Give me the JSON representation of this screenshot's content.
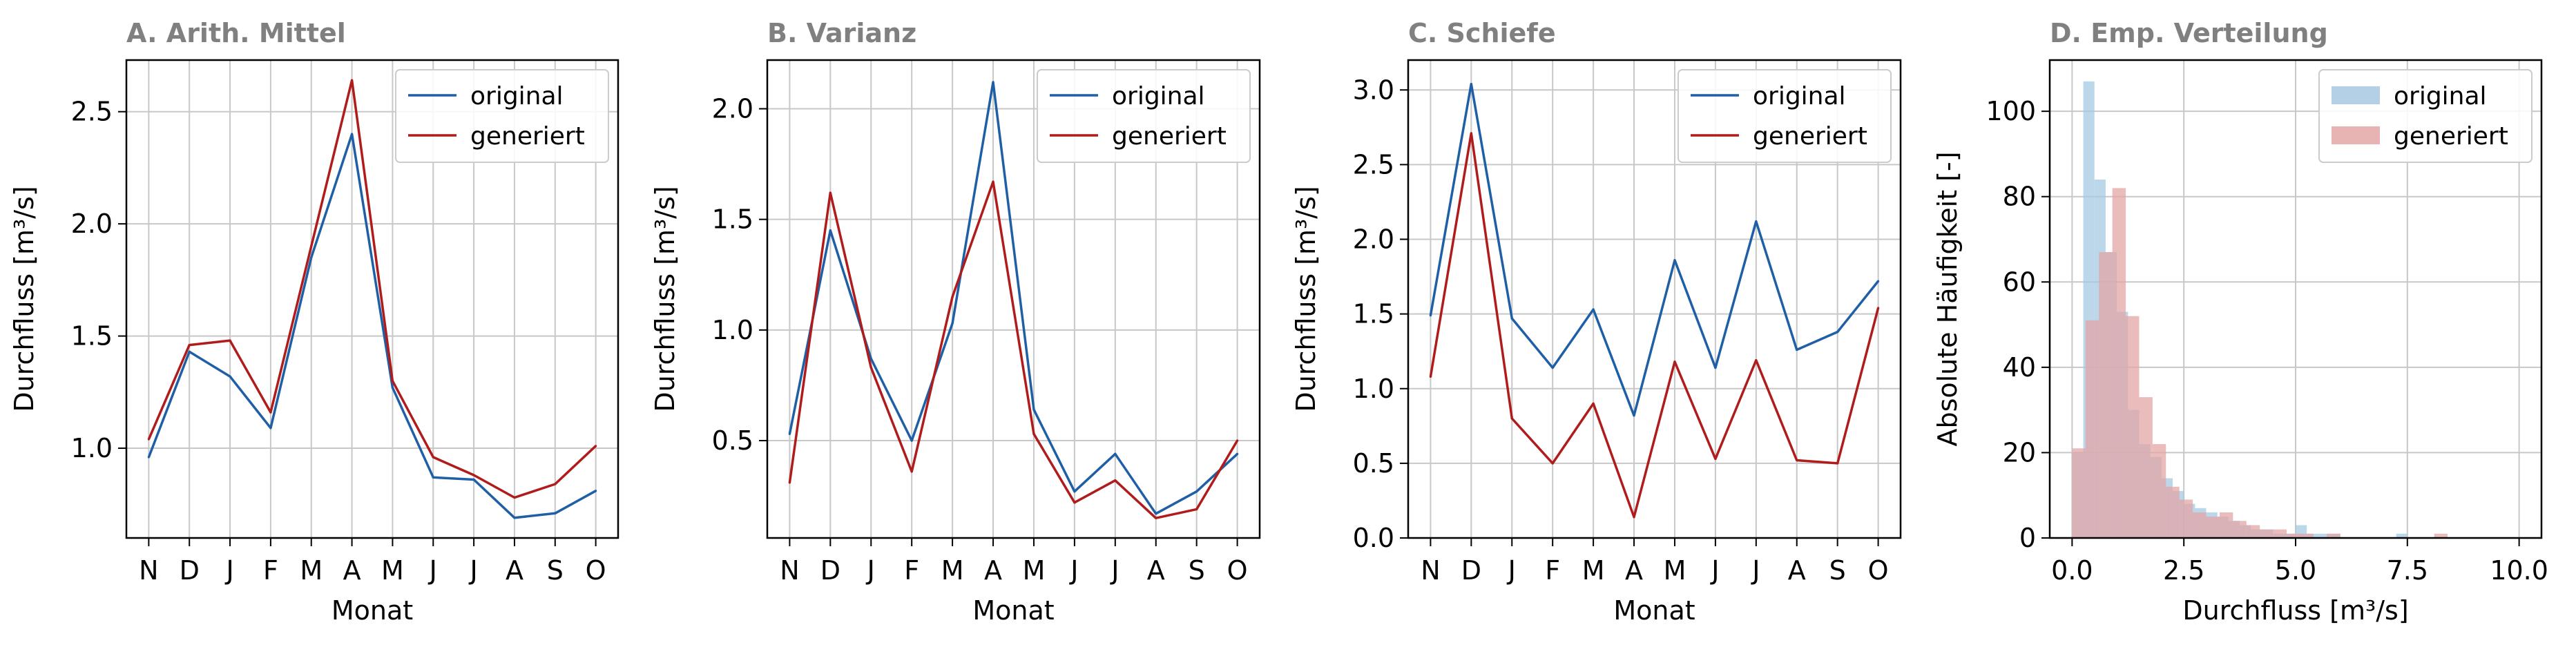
{
  "colors": {
    "original": "#1f5fa6",
    "generiert": "#b01c1c",
    "original_fill": "#a6c8e3",
    "generiert_fill": "#e3a6a6",
    "grid": "#c8c8c8",
    "title": "#808080"
  },
  "chart_data": [
    {
      "type": "line",
      "title": "A. Arith. Mittel",
      "xlabel": "Monat",
      "ylabel": "Durchfluss [m³/s]",
      "categories": [
        "N",
        "D",
        "J",
        "F",
        "M",
        "A",
        "M",
        "J",
        "J",
        "A",
        "S",
        "O"
      ],
      "ylim": [
        0.6,
        2.73
      ],
      "yticks": [
        1.0,
        1.5,
        2.0,
        2.5
      ],
      "ytick_labels": [
        "1.0",
        "1.5",
        "2.0",
        "2.5"
      ],
      "grid": true,
      "legend": "top-right",
      "series": [
        {
          "name": "original",
          "values": [
            0.96,
            1.43,
            1.32,
            1.09,
            1.85,
            2.4,
            1.27,
            0.87,
            0.86,
            0.69,
            0.71,
            0.81
          ]
        },
        {
          "name": "generiert",
          "values": [
            1.04,
            1.46,
            1.48,
            1.16,
            1.9,
            2.64,
            1.3,
            0.96,
            0.88,
            0.78,
            0.84,
            1.01
          ]
        }
      ]
    },
    {
      "type": "line",
      "title": "B. Varianz",
      "xlabel": "Monat",
      "ylabel": "Durchfluss [m³/s]",
      "categories": [
        "N",
        "D",
        "J",
        "F",
        "M",
        "A",
        "M",
        "J",
        "J",
        "A",
        "S",
        "O"
      ],
      "ylim": [
        0.06,
        2.22
      ],
      "yticks": [
        0.5,
        1.0,
        1.5,
        2.0
      ],
      "ytick_labels": [
        "0.5",
        "1.0",
        "1.5",
        "2.0"
      ],
      "grid": true,
      "legend": "top-right",
      "series": [
        {
          "name": "original",
          "values": [
            0.53,
            1.45,
            0.87,
            0.5,
            1.03,
            2.12,
            0.64,
            0.27,
            0.44,
            0.17,
            0.27,
            0.44
          ]
        },
        {
          "name": "generiert",
          "values": [
            0.31,
            1.62,
            0.83,
            0.36,
            1.15,
            1.67,
            0.53,
            0.22,
            0.32,
            0.15,
            0.19,
            0.5
          ]
        }
      ]
    },
    {
      "type": "line",
      "title": "C. Schiefe",
      "xlabel": "Monat",
      "ylabel": "Durchfluss [m³/s]",
      "categories": [
        "N",
        "D",
        "J",
        "F",
        "M",
        "A",
        "M",
        "J",
        "J",
        "A",
        "S",
        "O"
      ],
      "ylim": [
        0.0,
        3.2
      ],
      "yticks": [
        0.0,
        0.5,
        1.0,
        1.5,
        2.0,
        2.5,
        3.0
      ],
      "ytick_labels": [
        "0.0",
        "0.5",
        "1.0",
        "1.5",
        "2.0",
        "2.5",
        "3.0"
      ],
      "grid": true,
      "legend": "top-right",
      "series": [
        {
          "name": "original",
          "values": [
            1.49,
            3.04,
            1.47,
            1.14,
            1.53,
            0.82,
            1.86,
            1.14,
            2.12,
            1.26,
            1.38,
            1.72
          ]
        },
        {
          "name": "generiert",
          "values": [
            1.08,
            2.71,
            0.8,
            0.5,
            0.9,
            0.14,
            1.18,
            0.53,
            1.19,
            0.52,
            0.5,
            1.54
          ]
        }
      ]
    },
    {
      "type": "histogram",
      "title": "D. Emp. Verteilung",
      "xlabel": "Durchfluss [m³/s]",
      "ylabel": "Absolute Häufigkeit [-]",
      "xlim": [
        -0.5,
        10.5
      ],
      "ylim": [
        0,
        112
      ],
      "xticks": [
        0.0,
        2.5,
        5.0,
        7.5,
        10.0
      ],
      "xtick_labels": [
        "0.0",
        "2.5",
        "5.0",
        "7.5",
        "10.0"
      ],
      "yticks": [
        0,
        20,
        40,
        60,
        80,
        100
      ],
      "ytick_labels": [
        "0",
        "20",
        "40",
        "60",
        "80",
        "100"
      ],
      "grid": true,
      "legend": "top-right",
      "series": [
        {
          "name": "original",
          "bin_edges": [
            0.0,
            0.25,
            0.5,
            0.75,
            1.0,
            1.25,
            1.5,
            1.75,
            2.0,
            2.25,
            2.5,
            2.75,
            3.0,
            3.25,
            3.5,
            3.75,
            4.0,
            4.25,
            4.5,
            4.75,
            5.0,
            5.25,
            5.5,
            5.75,
            6.0,
            6.25,
            6.5,
            6.75,
            7.0,
            7.25,
            7.5,
            7.75,
            8.0
          ],
          "counts": [
            20,
            107,
            84,
            67,
            53,
            30,
            22,
            19,
            14,
            11,
            8,
            7,
            6,
            5,
            4,
            3,
            2,
            2,
            1,
            1,
            3,
            1,
            1,
            1,
            0,
            0,
            0,
            0,
            0,
            1,
            0,
            0
          ]
        },
        {
          "name": "generiert",
          "bin_edges": [
            0.0,
            0.3,
            0.6,
            0.9,
            1.2,
            1.5,
            1.8,
            2.1,
            2.4,
            2.7,
            3.0,
            3.3,
            3.6,
            3.9,
            4.2,
            4.5,
            4.8,
            5.1,
            5.4,
            5.7,
            6.0,
            6.3,
            6.6,
            6.9,
            7.2,
            7.5,
            7.8,
            8.1,
            8.4
          ],
          "counts": [
            21,
            51,
            67,
            82,
            52,
            33,
            22,
            12,
            9,
            6,
            5,
            6,
            4,
            3,
            2,
            2,
            1,
            1,
            0,
            1,
            0,
            0,
            0,
            0,
            0,
            0,
            0,
            1
          ]
        }
      ]
    }
  ]
}
